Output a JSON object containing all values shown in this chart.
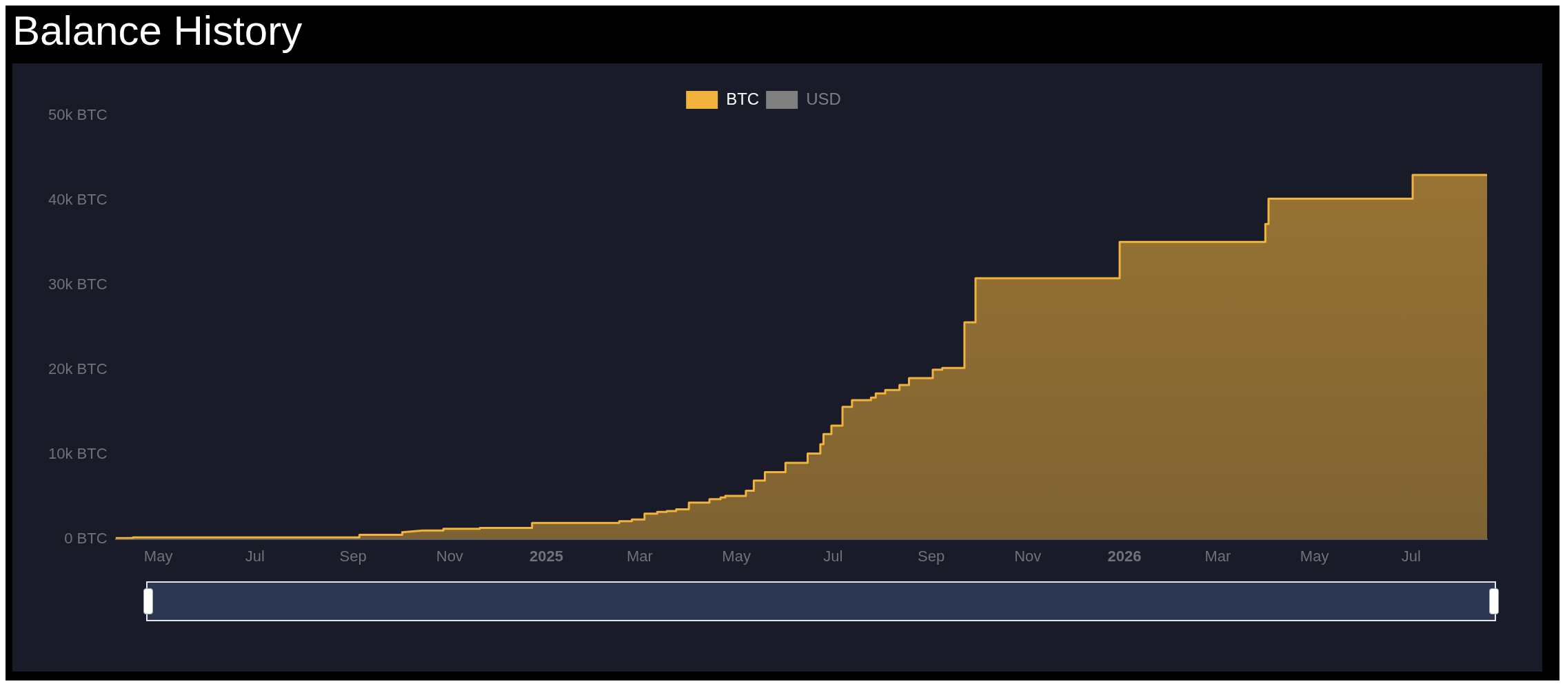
{
  "chart_data": {
    "type": "area",
    "title": "Balance History",
    "x": [
      "2024-04-04",
      "2024-04-15",
      "2024-04-15",
      "2024-09-05",
      "2024-09-05",
      "2024-10-02",
      "2024-10-02",
      "2024-10-15",
      "2024-10-28",
      "2024-10-28",
      "2024-11-20",
      "2024-11-20",
      "2024-12-23",
      "2024-12-23",
      "2025-02-16",
      "2025-02-16",
      "2025-02-24",
      "2025-02-24",
      "2025-03-04",
      "2025-03-04",
      "2025-03-12",
      "2025-03-12",
      "2025-03-18",
      "2025-03-18",
      "2025-03-24",
      "2025-03-24",
      "2025-04-01",
      "2025-04-01",
      "2025-04-14",
      "2025-04-14",
      "2025-04-21",
      "2025-04-21",
      "2025-04-24",
      "2025-04-24",
      "2025-05-07",
      "2025-05-07",
      "2025-05-12",
      "2025-05-12",
      "2025-05-19",
      "2025-05-19",
      "2025-06-01",
      "2025-06-01",
      "2025-06-15",
      "2025-06-15",
      "2025-06-23",
      "2025-06-23",
      "2025-06-25",
      "2025-06-25",
      "2025-06-30",
      "2025-06-30",
      "2025-07-07",
      "2025-07-07",
      "2025-07-13",
      "2025-07-13",
      "2025-07-25",
      "2025-07-25",
      "2025-07-28",
      "2025-07-28",
      "2025-08-03",
      "2025-08-03",
      "2025-08-12",
      "2025-08-12",
      "2025-08-18",
      "2025-08-18",
      "2025-09-02",
      "2025-09-02",
      "2025-09-08",
      "2025-09-08",
      "2025-09-22",
      "2025-09-22",
      "2025-09-29",
      "2025-09-29",
      "2025-12-29",
      "2025-12-29",
      "2026-03-31",
      "2026-03-31",
      "2026-04-02",
      "2026-04-02",
      "2026-07-02",
      "2026-07-02",
      "2026-08-18"
    ],
    "series": [
      {
        "name": "BTC",
        "color": "#f2b33d",
        "values": [
          100,
          100,
          200,
          200,
          500,
          500,
          800,
          1000,
          1000,
          1200,
          1200,
          1300,
          1300,
          1900,
          1900,
          2100,
          2100,
          2300,
          2300,
          3000,
          3000,
          3200,
          3200,
          3300,
          3300,
          3500,
          3500,
          4300,
          4300,
          4700,
          4700,
          4900,
          4900,
          5100,
          5100,
          5700,
          5700,
          6900,
          6900,
          7900,
          7900,
          9000,
          9000,
          10100,
          10100,
          11200,
          11200,
          12400,
          12400,
          13400,
          13400,
          15600,
          15600,
          16400,
          16400,
          16700,
          16700,
          17200,
          17200,
          17600,
          17600,
          18200,
          18200,
          19000,
          19000,
          20000,
          20000,
          20200,
          20200,
          25600,
          25600,
          30800,
          30800,
          35100,
          35100,
          37200,
          37200,
          40200,
          40200,
          43000,
          43000
        ]
      },
      {
        "name": "USD",
        "color": "#808080",
        "values": [
          null,
          null,
          null,
          null,
          null,
          null,
          null,
          null,
          null,
          null,
          null,
          null,
          null,
          null,
          null,
          null,
          null,
          null,
          null,
          null,
          null,
          null,
          null,
          null,
          null,
          null,
          null,
          null,
          null,
          null,
          null,
          null,
          null,
          null,
          null,
          null,
          null,
          null,
          null,
          null,
          null,
          null,
          null,
          null,
          null,
          null,
          null,
          null,
          null,
          null,
          null,
          null,
          null,
          null,
          null,
          null,
          null,
          null,
          null,
          null,
          null,
          null,
          null,
          null,
          null,
          null,
          null,
          null,
          null,
          null,
          null,
          null,
          null,
          null,
          null,
          null,
          null,
          null,
          null,
          null,
          null
        ]
      }
    ],
    "xlim": [
      "2024-04-04",
      "2026-08-18"
    ],
    "xticks": [
      {
        "value": "2024-05-01",
        "label": "May"
      },
      {
        "value": "2024-07-01",
        "label": "Jul"
      },
      {
        "value": "2024-09-01",
        "label": "Sep"
      },
      {
        "value": "2024-11-01",
        "label": "Nov"
      },
      {
        "value": "2025-01-01",
        "label": "2025"
      },
      {
        "value": "2025-03-01",
        "label": "Mar"
      },
      {
        "value": "2025-05-01",
        "label": "May"
      },
      {
        "value": "2025-07-01",
        "label": "Jul"
      },
      {
        "value": "2025-09-01",
        "label": "Sep"
      },
      {
        "value": "2025-11-01",
        "label": "Nov"
      },
      {
        "value": "2026-01-01",
        "label": "2026"
      },
      {
        "value": "2026-03-01",
        "label": "Mar"
      },
      {
        "value": "2026-05-01",
        "label": "May"
      },
      {
        "value": "2026-07-01",
        "label": "Jul"
      }
    ],
    "ylim": [
      0,
      50000
    ],
    "yticks": [
      {
        "value": 0,
        "label": "0 BTC"
      },
      {
        "value": 10000,
        "label": "10k BTC"
      },
      {
        "value": 20000,
        "label": "20k BTC"
      },
      {
        "value": 30000,
        "label": "30k BTC"
      },
      {
        "value": 40000,
        "label": "40k BTC"
      },
      {
        "value": 50000,
        "label": "50k BTC"
      }
    ],
    "legend": "top",
    "grid": false
  }
}
